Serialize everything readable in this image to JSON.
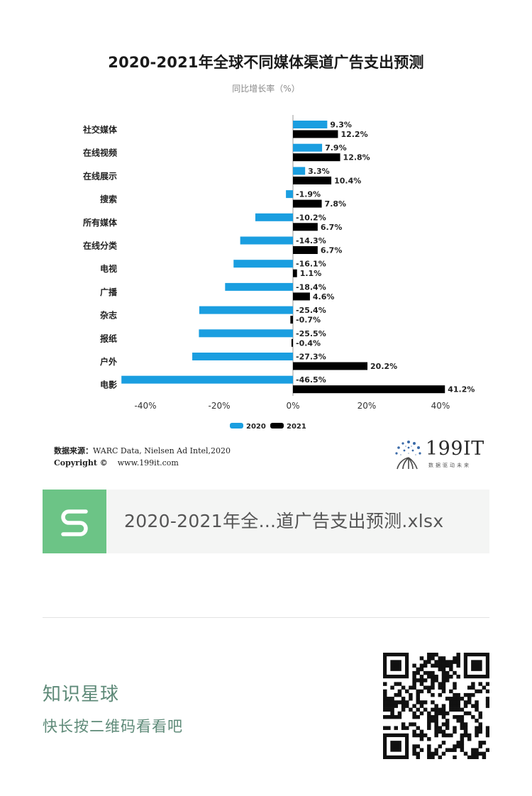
{
  "chart": {
    "title": "2020-2021年全球不同媒体渠道广告支出预测",
    "subtitle": "同比增长率（%）"
  },
  "chart_data": {
    "type": "bar",
    "orientation": "horizontal",
    "title": "2020-2021年全球不同媒体渠道广告支出预测",
    "subtitle": "同比增长率（%）",
    "categories": [
      "社交媒体",
      "在线视频",
      "在线展示",
      "搜索",
      "所有媒体",
      "在线分类",
      "电视",
      "广播",
      "杂志",
      "报纸",
      "户外",
      "电影"
    ],
    "series": [
      {
        "name": "2020",
        "color": "#1a9ee0",
        "values": [
          9.3,
          7.9,
          3.3,
          -1.9,
          -10.2,
          -14.3,
          -16.1,
          -18.4,
          -25.4,
          -25.5,
          -27.3,
          -46.5
        ],
        "labels": [
          "9.3%",
          "7.9%",
          "3.3%",
          "-1.9%",
          "-10.2%",
          "-14.3%",
          "-16.1%",
          "-18.4%",
          "-25.4%",
          "-25.5%",
          "-27.3%",
          "-46.5%"
        ]
      },
      {
        "name": "2021",
        "color": "#000000",
        "values": [
          12.2,
          12.8,
          10.4,
          7.8,
          6.7,
          6.7,
          1.1,
          4.6,
          -0.7,
          -0.4,
          20.2,
          41.2
        ],
        "labels": [
          "12.2%",
          "12.8%",
          "10.4%",
          "7.8%",
          "6.7%",
          "6.7%",
          "1.1%",
          "4.6%",
          "-0.7%",
          "-0.4%",
          "20.2%",
          "41.2%"
        ]
      }
    ],
    "xlim": [
      -47,
      42
    ],
    "xticks": [
      -40,
      -20,
      0,
      20,
      40
    ],
    "xtick_labels": [
      "-40%",
      "-20%",
      "0%",
      "20%",
      "40%"
    ],
    "legend_position": "bottom-center",
    "grid": false
  },
  "source": {
    "label": "数据来源：",
    "text": "WARC Data, Nielsen Ad Intel,2020",
    "copyright_label": "Copyright ©",
    "url": "www.199it.com"
  },
  "logo": {
    "text": "199IT",
    "tagline": "数据驱动未来"
  },
  "file": {
    "name": "2020-2021年全...道广告支出预测.xlsx",
    "icon": "s-file-icon",
    "icon_color": "#6cc486"
  },
  "planet": {
    "title": "知识星球",
    "subtitle": "快长按二维码看看吧",
    "color": "#5e8a78"
  },
  "qr": {
    "icon": "qr-code-icon"
  }
}
